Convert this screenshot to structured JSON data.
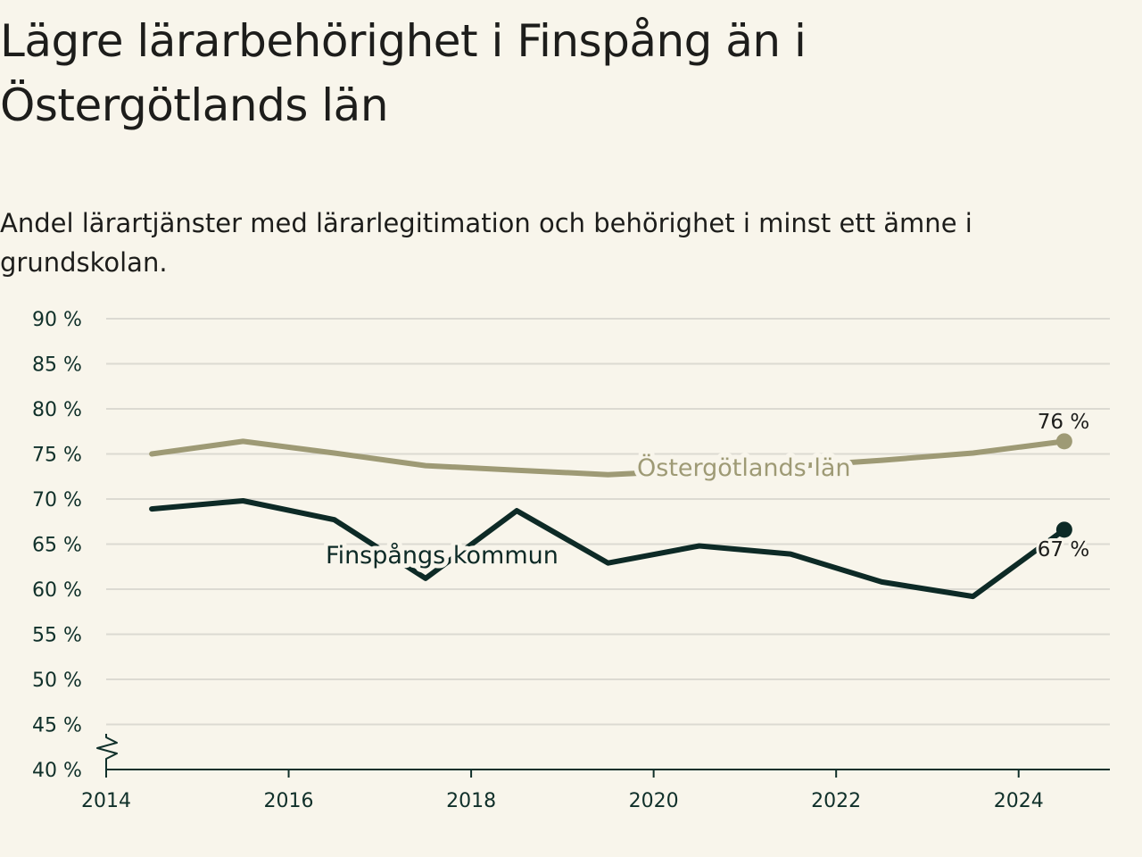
{
  "chart_data": {
    "type": "line",
    "title": "Lägre lärarbehörighet i Finspång än i Östergötlands län",
    "subtitle": "Andel lärartjänster med lärarlegitimation och behörighet i minst ett ämne i grundskolan.",
    "xlim": [
      2014,
      2025
    ],
    "ylim": [
      40,
      90
    ],
    "x_ticks": [
      2014,
      2016,
      2018,
      2020,
      2022,
      2024
    ],
    "x_tick_labels": [
      "2014",
      "2016",
      "2018",
      "2020",
      "2022",
      "2024"
    ],
    "y_ticks": [
      40,
      45,
      50,
      55,
      60,
      65,
      70,
      75,
      80,
      85,
      90
    ],
    "y_tick_labels": [
      "40 %",
      "45 %",
      "50 %",
      "55 %",
      "60 %",
      "65 %",
      "70 %",
      "75 %",
      "80 %",
      "85 %",
      "90 %"
    ],
    "grid": true,
    "axis_break": true,
    "series": [
      {
        "name": "Östergötlands län",
        "color": "#9e9a75",
        "x": [
          2014.5,
          2015.5,
          2016.5,
          2017.5,
          2018.5,
          2019.5,
          2020.5,
          2021.5,
          2022.5,
          2023.5,
          2024.5
        ],
        "values": [
          75.0,
          76.4,
          75.1,
          73.7,
          73.2,
          72.7,
          73.2,
          73.6,
          74.3,
          75.1,
          76.4
        ],
        "end_label": "76 %"
      },
      {
        "name": "Finspångs kommun",
        "color": "#0d2a26",
        "x": [
          2014.5,
          2015.5,
          2016.5,
          2017.5,
          2018.5,
          2019.5,
          2020.5,
          2021.5,
          2022.5,
          2023.5,
          2024.5
        ],
        "values": [
          68.9,
          69.8,
          67.7,
          61.2,
          68.7,
          62.9,
          64.8,
          63.9,
          60.8,
          59.2,
          66.6
        ],
        "end_label": "67 %"
      }
    ]
  }
}
